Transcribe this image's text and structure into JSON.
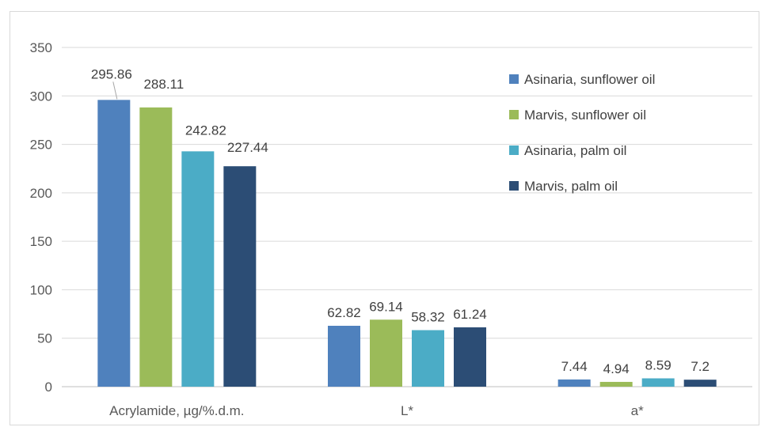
{
  "chart_data": {
    "type": "bar",
    "categories": [
      "Acrylamide, µg/%.d.m.",
      "L*",
      "a*"
    ],
    "series": [
      {
        "name": "Asinaria, sunflower oil",
        "values": [
          295.86,
          62.82,
          7.44
        ],
        "labels": [
          "295.86",
          "62.82",
          "7.44"
        ],
        "color": "#4f81bd"
      },
      {
        "name": "Marvis, sunflower oil",
        "values": [
          288.11,
          69.14,
          4.94
        ],
        "labels": [
          "288.11",
          "69.14",
          "4.94"
        ],
        "color": "#9bbb59"
      },
      {
        "name": "Asinaria, palm oil",
        "values": [
          242.82,
          58.32,
          8.59
        ],
        "labels": [
          "242.82",
          "58.32",
          "8.59"
        ],
        "color": "#4bacc6"
      },
      {
        "name": "Marvis, palm oil",
        "values": [
          227.44,
          61.24,
          7.2
        ],
        "labels": [
          "227.44",
          "61.24",
          "7.2"
        ],
        "color": "#2c4d75"
      }
    ],
    "ylim": [
      0,
      350
    ],
    "yticks": [
      "0",
      "50",
      "100",
      "150",
      "200",
      "250",
      "300",
      "350"
    ],
    "grid": true,
    "legend_position": "right"
  }
}
